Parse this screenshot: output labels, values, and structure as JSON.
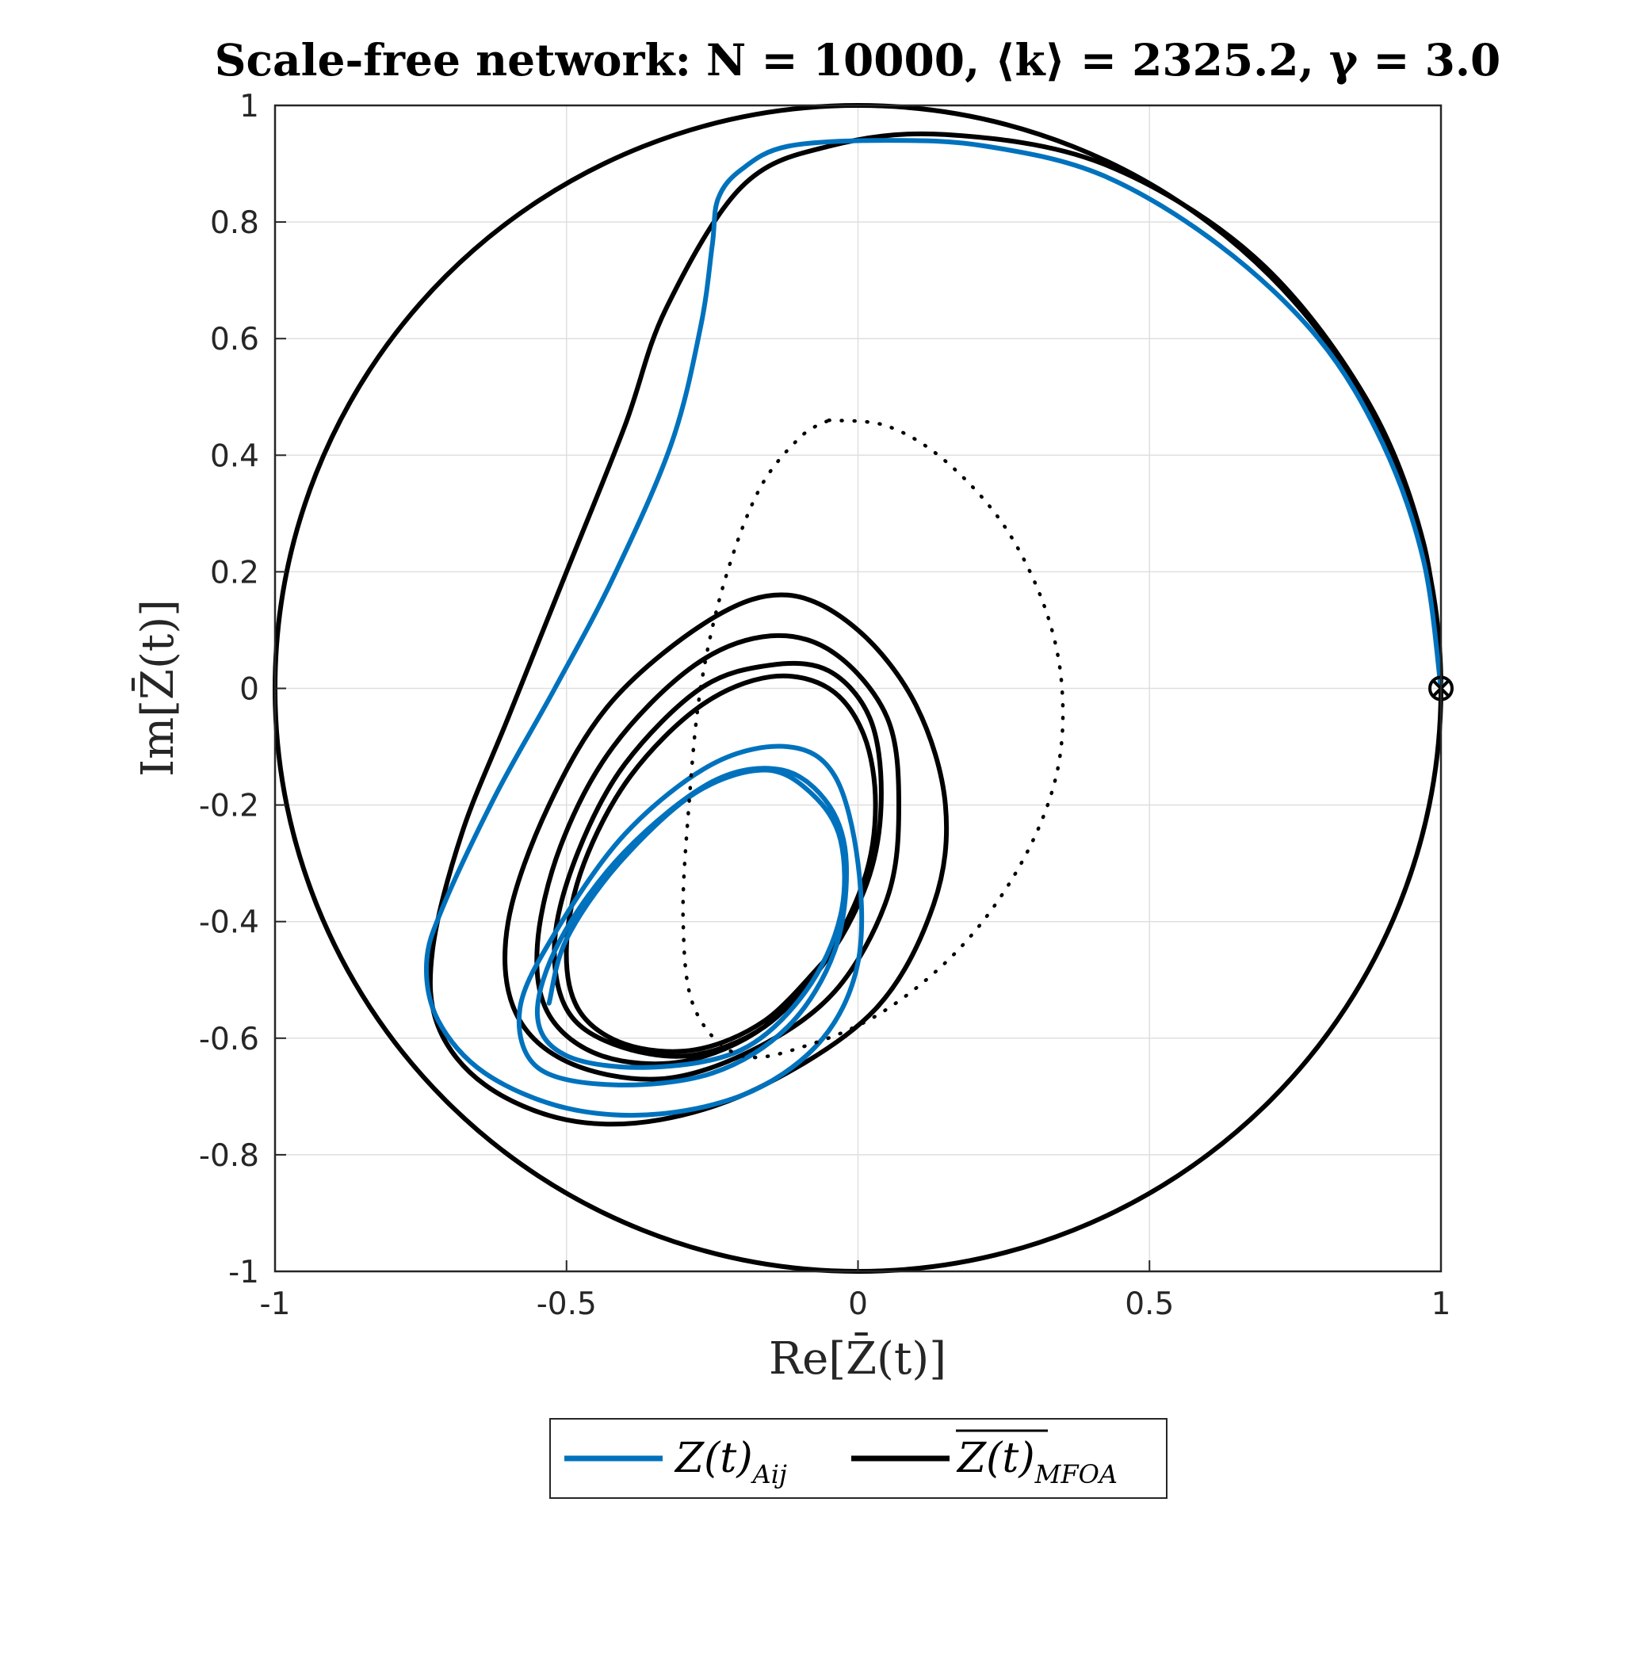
{
  "chart_data": {
    "type": "line",
    "title": "Scale-free network: N = 10000, ⟨k⟩ = 2325.2, γ = 3.0",
    "xlabel": "Re[Z̄(t)]",
    "ylabel": "Im[Z̄(t)]",
    "xlim": [
      -1,
      1
    ],
    "ylim": [
      -1,
      1
    ],
    "grid": true,
    "x_ticks": [
      "-1",
      "-0.5",
      "0",
      "0.5",
      "1"
    ],
    "y_ticks": [
      "1",
      "0.8",
      "0.6",
      "0.4",
      "0.2",
      "0",
      "-0.2",
      "-0.4",
      "-0.6",
      "-0.8",
      "-1"
    ],
    "legend_position": "bottom-center",
    "unit_circle": true,
    "start_marker": {
      "x": 1.0,
      "y": 0.0,
      "symbol": "circle-cross"
    },
    "series": [
      {
        "name": "Z(t)_{A_ij}",
        "color": "#0072BD",
        "style": "solid",
        "points": [
          [
            1.0,
            0.0
          ],
          [
            0.97,
            0.22
          ],
          [
            0.9,
            0.42
          ],
          [
            0.79,
            0.6
          ],
          [
            0.62,
            0.76
          ],
          [
            0.42,
            0.88
          ],
          [
            0.22,
            0.93
          ],
          [
            0.05,
            0.94
          ],
          [
            -0.12,
            0.93
          ],
          [
            -0.2,
            0.89
          ],
          [
            -0.24,
            0.84
          ],
          [
            -0.25,
            0.76
          ],
          [
            -0.27,
            0.62
          ],
          [
            -0.32,
            0.42
          ],
          [
            -0.42,
            0.19
          ],
          [
            -0.52,
            0.0
          ],
          [
            -0.62,
            -0.18
          ],
          [
            -0.71,
            -0.37
          ],
          [
            -0.74,
            -0.47
          ],
          [
            -0.72,
            -0.57
          ],
          [
            -0.64,
            -0.66
          ],
          [
            -0.5,
            -0.72
          ],
          [
            -0.34,
            -0.73
          ],
          [
            -0.18,
            -0.69
          ],
          [
            -0.06,
            -0.6
          ],
          [
            0.0,
            -0.47
          ],
          [
            0.0,
            -0.3
          ],
          [
            -0.04,
            -0.15
          ],
          [
            -0.12,
            -0.1
          ],
          [
            -0.25,
            -0.13
          ],
          [
            -0.4,
            -0.25
          ],
          [
            -0.52,
            -0.42
          ],
          [
            -0.58,
            -0.55
          ],
          [
            -0.55,
            -0.65
          ],
          [
            -0.42,
            -0.68
          ],
          [
            -0.25,
            -0.66
          ],
          [
            -0.12,
            -0.58
          ],
          [
            -0.04,
            -0.45
          ],
          [
            -0.02,
            -0.3
          ],
          [
            -0.05,
            -0.2
          ],
          [
            -0.13,
            -0.14
          ],
          [
            -0.25,
            -0.16
          ],
          [
            -0.4,
            -0.28
          ],
          [
            -0.51,
            -0.43
          ],
          [
            -0.55,
            -0.56
          ],
          [
            -0.5,
            -0.63
          ],
          [
            -0.36,
            -0.65
          ],
          [
            -0.2,
            -0.62
          ],
          [
            -0.09,
            -0.52
          ],
          [
            -0.03,
            -0.39
          ],
          [
            -0.03,
            -0.26
          ],
          [
            -0.08,
            -0.18
          ],
          [
            -0.16,
            -0.14
          ],
          [
            -0.28,
            -0.18
          ],
          [
            -0.41,
            -0.3
          ],
          [
            -0.5,
            -0.43
          ],
          [
            -0.53,
            -0.54
          ]
        ]
      },
      {
        "name": "Z(t)_{MF_OA}",
        "color": "#000000",
        "style": "solid",
        "points": [
          [
            1.0,
            0.0
          ],
          [
            0.97,
            0.25
          ],
          [
            0.87,
            0.5
          ],
          [
            0.68,
            0.74
          ],
          [
            0.42,
            0.9
          ],
          [
            0.15,
            0.95
          ],
          [
            -0.05,
            0.93
          ],
          [
            -0.2,
            0.86
          ],
          [
            -0.33,
            0.65
          ],
          [
            -0.4,
            0.45
          ],
          [
            -0.5,
            0.2
          ],
          [
            -0.6,
            -0.05
          ],
          [
            -0.68,
            -0.25
          ],
          [
            -0.73,
            -0.45
          ],
          [
            -0.72,
            -0.58
          ],
          [
            -0.64,
            -0.68
          ],
          [
            -0.5,
            -0.74
          ],
          [
            -0.34,
            -0.74
          ],
          [
            -0.16,
            -0.68
          ],
          [
            0.03,
            -0.55
          ],
          [
            0.13,
            -0.37
          ],
          [
            0.15,
            -0.2
          ],
          [
            0.1,
            -0.03
          ],
          [
            0.0,
            0.1
          ],
          [
            -0.12,
            0.16
          ],
          [
            -0.25,
            0.12
          ],
          [
            -0.42,
            -0.02
          ],
          [
            -0.53,
            -0.2
          ],
          [
            -0.6,
            -0.4
          ],
          [
            -0.59,
            -0.55
          ],
          [
            -0.5,
            -0.64
          ],
          [
            -0.34,
            -0.67
          ],
          [
            -0.18,
            -0.62
          ],
          [
            -0.04,
            -0.52
          ],
          [
            0.05,
            -0.36
          ],
          [
            0.07,
            -0.2
          ],
          [
            0.05,
            -0.05
          ],
          [
            -0.04,
            0.06
          ],
          [
            -0.15,
            0.09
          ],
          [
            -0.28,
            0.04
          ],
          [
            -0.42,
            -0.1
          ],
          [
            -0.51,
            -0.27
          ],
          [
            -0.55,
            -0.44
          ],
          [
            -0.53,
            -0.56
          ],
          [
            -0.44,
            -0.63
          ],
          [
            -0.3,
            -0.64
          ],
          [
            -0.16,
            -0.58
          ],
          [
            -0.05,
            -0.46
          ],
          [
            0.02,
            -0.32
          ],
          [
            0.04,
            -0.18
          ],
          [
            0.02,
            -0.05
          ],
          [
            -0.05,
            0.03
          ],
          [
            -0.15,
            0.04
          ],
          [
            -0.27,
            0.0
          ],
          [
            -0.4,
            -0.13
          ],
          [
            -0.48,
            -0.28
          ],
          [
            -0.52,
            -0.43
          ],
          [
            -0.5,
            -0.55
          ],
          [
            -0.42,
            -0.61
          ],
          [
            -0.29,
            -0.63
          ],
          [
            -0.16,
            -0.58
          ],
          [
            -0.06,
            -0.47
          ],
          [
            0.01,
            -0.33
          ],
          [
            0.03,
            -0.2
          ],
          [
            0.01,
            -0.08
          ],
          [
            -0.05,
            0.0
          ],
          [
            -0.15,
            0.02
          ],
          [
            -0.27,
            -0.03
          ],
          [
            -0.39,
            -0.15
          ],
          [
            -0.47,
            -0.3
          ],
          [
            -0.5,
            -0.44
          ],
          [
            -0.48,
            -0.55
          ],
          [
            -0.4,
            -0.61
          ],
          [
            -0.28,
            -0.62
          ],
          [
            -0.16,
            -0.57
          ],
          [
            -0.06,
            -0.47
          ]
        ]
      },
      {
        "name": "",
        "color": "#000000",
        "style": "dotted",
        "points": [
          [
            -0.05,
            0.46
          ],
          [
            0.05,
            0.45
          ],
          [
            0.15,
            0.39
          ],
          [
            0.25,
            0.28
          ],
          [
            0.32,
            0.14
          ],
          [
            0.35,
            0.0
          ],
          [
            0.34,
            -0.15
          ],
          [
            0.28,
            -0.3
          ],
          [
            0.18,
            -0.44
          ],
          [
            0.05,
            -0.55
          ],
          [
            -0.08,
            -0.61
          ],
          [
            -0.2,
            -0.63
          ],
          [
            -0.28,
            -0.55
          ],
          [
            -0.3,
            -0.4
          ],
          [
            -0.29,
            -0.2
          ],
          [
            -0.27,
            0.0
          ],
          [
            -0.23,
            0.18
          ],
          [
            -0.17,
            0.34
          ],
          [
            -0.1,
            0.43
          ],
          [
            -0.05,
            0.46
          ]
        ]
      }
    ]
  },
  "legend": {
    "items": [
      {
        "label": "Z(t)",
        "sub": "Aij",
        "overline": false,
        "color": "#0072BD"
      },
      {
        "label": "Z(t)",
        "sub": "MFOA",
        "overline": true,
        "color": "#000000"
      }
    ]
  }
}
